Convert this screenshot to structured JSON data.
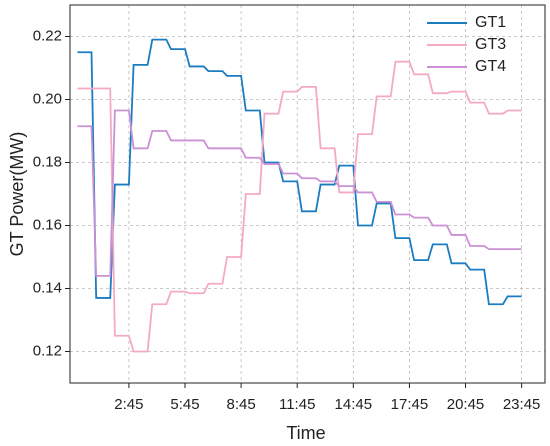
{
  "chart_data": {
    "type": "line",
    "x_label": "Time",
    "y_label": "GT Power(MW)",
    "x": [
      0,
      0.75,
      1,
      1.75,
      2,
      2.75,
      3,
      3.75,
      4,
      4.75,
      5,
      5.75,
      6,
      6.75,
      7,
      7.75,
      8,
      8.75,
      9,
      9.75,
      10,
      10.75,
      11,
      11.75,
      12,
      12.75,
      13,
      13.75,
      14,
      14.75,
      15,
      15.75,
      16,
      16.75,
      17,
      17.75,
      18,
      18.75,
      19,
      19.75,
      20,
      20.75,
      21,
      21.75,
      22,
      22.75,
      23,
      23.75
    ],
    "series": [
      {
        "name": "GT1",
        "color": "#1b7cc0",
        "values": [
          0.215,
          0.215,
          0.137,
          0.137,
          0.173,
          0.173,
          0.211,
          0.211,
          0.219,
          0.219,
          0.216,
          0.216,
          0.2105,
          0.2105,
          0.209,
          0.209,
          0.2075,
          0.2075,
          0.1965,
          0.1965,
          0.18,
          0.18,
          0.174,
          0.174,
          0.1645,
          0.1645,
          0.173,
          0.173,
          0.179,
          0.179,
          0.16,
          0.16,
          0.167,
          0.167,
          0.156,
          0.156,
          0.149,
          0.149,
          0.154,
          0.154,
          0.148,
          0.148,
          0.146,
          0.146,
          0.135,
          0.135,
          0.1375,
          0.1375
        ]
      },
      {
        "name": "GT3",
        "color": "#f5a9c6",
        "values": [
          0.2035,
          0.2035,
          0.2035,
          0.2035,
          0.125,
          0.125,
          0.12,
          0.12,
          0.135,
          0.135,
          0.139,
          0.139,
          0.1385,
          0.1385,
          0.1415,
          0.1415,
          0.15,
          0.15,
          0.17,
          0.17,
          0.1955,
          0.1955,
          0.2025,
          0.2025,
          0.204,
          0.204,
          0.1845,
          0.1845,
          0.1705,
          0.1705,
          0.189,
          0.189,
          0.201,
          0.201,
          0.212,
          0.212,
          0.208,
          0.208,
          0.202,
          0.202,
          0.2025,
          0.2025,
          0.199,
          0.199,
          0.1955,
          0.1955,
          0.1965,
          0.1965
        ]
      },
      {
        "name": "GT4",
        "color": "#cc90d4",
        "values": [
          0.1915,
          0.1915,
          0.144,
          0.144,
          0.1965,
          0.1965,
          0.1845,
          0.1845,
          0.19,
          0.19,
          0.187,
          0.187,
          0.187,
          0.187,
          0.1845,
          0.1845,
          0.1845,
          0.1845,
          0.1815,
          0.1815,
          0.1795,
          0.1795,
          0.1765,
          0.1765,
          0.175,
          0.175,
          0.174,
          0.174,
          0.1725,
          0.1725,
          0.1705,
          0.1705,
          0.1675,
          0.1675,
          0.1635,
          0.1635,
          0.1625,
          0.1625,
          0.16,
          0.16,
          0.157,
          0.157,
          0.1535,
          0.1535,
          0.1525,
          0.1525,
          0.1525,
          0.1525
        ]
      }
    ],
    "xlim": [
      -0.4,
      25
    ],
    "ylim": [
      0.11,
      0.23
    ],
    "xticks": [
      {
        "value": 2.75,
        "label": "2:45"
      },
      {
        "value": 5.75,
        "label": "5:45"
      },
      {
        "value": 8.75,
        "label": "8:45"
      },
      {
        "value": 11.75,
        "label": "11:45"
      },
      {
        "value": 14.75,
        "label": "14:45"
      },
      {
        "value": 17.75,
        "label": "17:45"
      },
      {
        "value": 20.75,
        "label": "20:45"
      },
      {
        "value": 23.75,
        "label": "23:45"
      }
    ],
    "yticks": [
      0.12,
      0.14,
      0.16,
      0.18,
      {
        "value": 0.2,
        "label": "0.20"
      },
      0.22
    ],
    "grid": true,
    "legend": "top-right"
  }
}
